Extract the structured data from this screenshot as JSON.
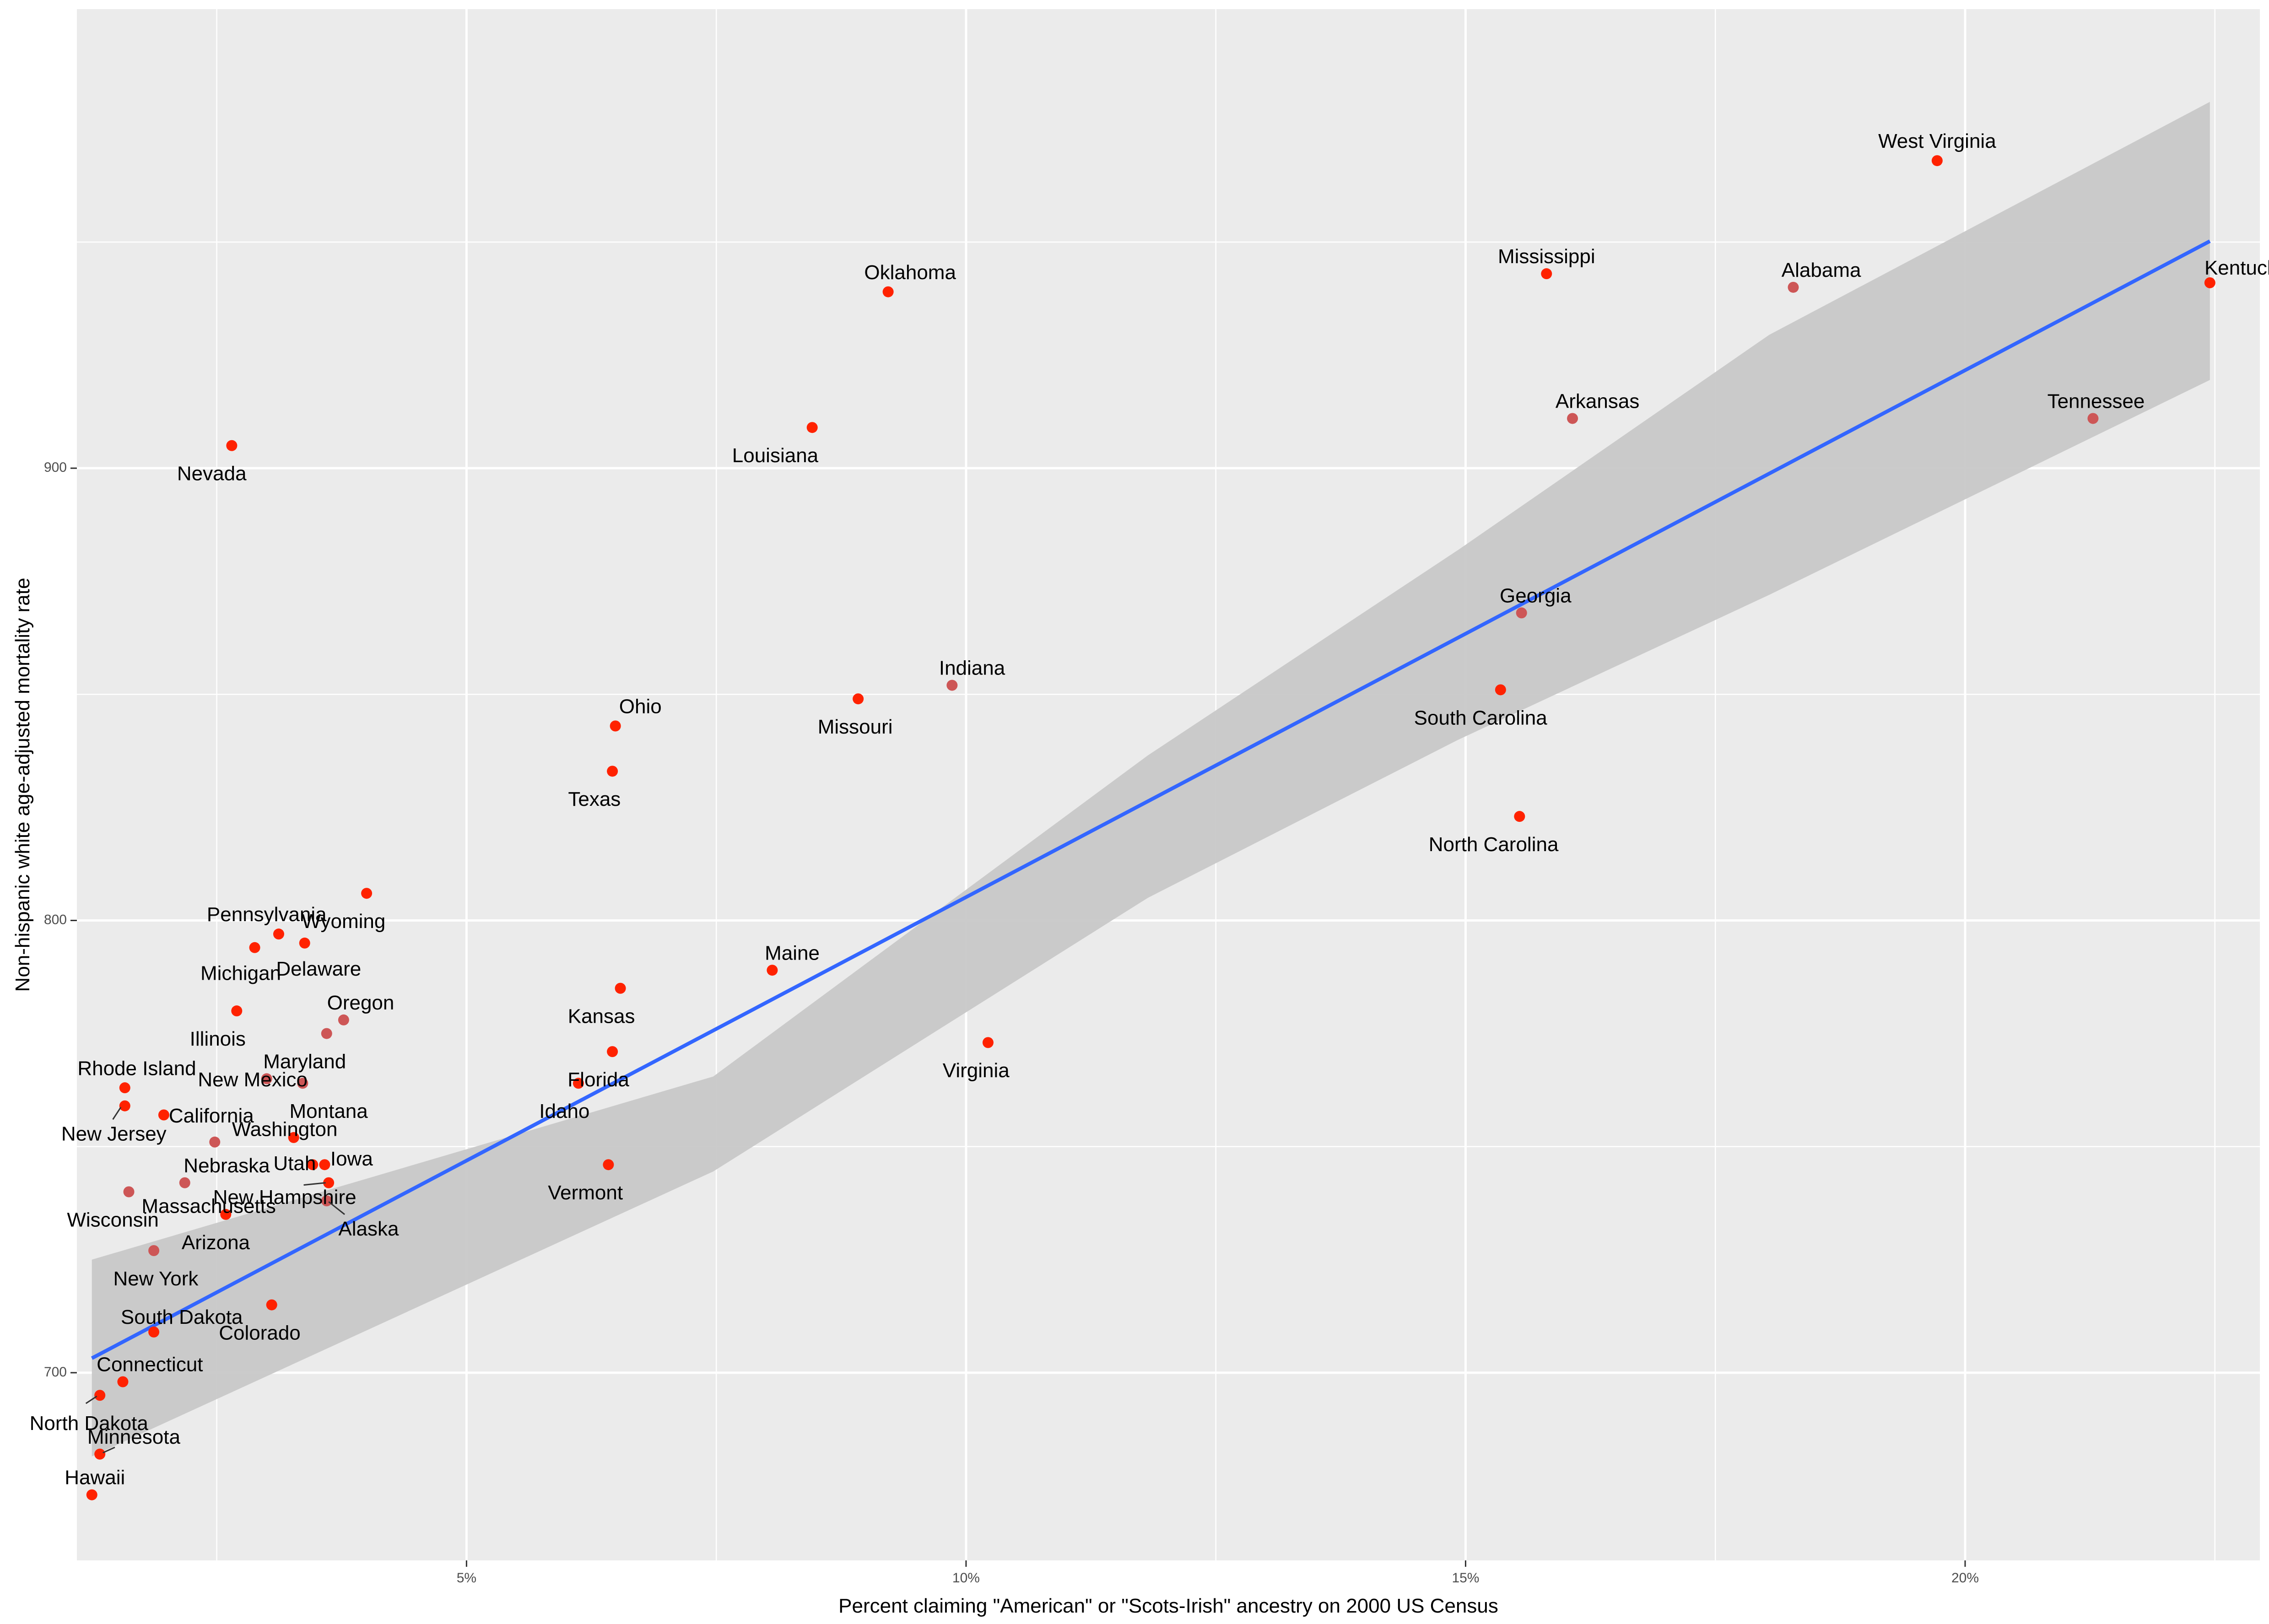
{
  "chart_data": {
    "type": "scatter",
    "title": "",
    "xlabel": "Percent claiming \"American\" or \"Scots-Irish\" ancestry on 2000 US Census",
    "ylabel": "Non-hispanic white age-adjusted mortality rate",
    "xlim": [
      0.011,
      0.2295
    ],
    "ylim": [
      658.5,
      1001.5
    ],
    "x_ticks": [
      0.05,
      0.1,
      0.15,
      0.2
    ],
    "x_tick_labels": [
      "5%",
      "10%",
      "15%",
      "20%"
    ],
    "y_ticks": [
      700,
      800,
      900
    ],
    "y_tick_labels": [
      "700",
      "800",
      "900"
    ],
    "grid": true,
    "legend": "none",
    "point_colors": {
      "bright": "#ff2200",
      "muted": "#cd5656"
    },
    "fit_line_color": "#3366ff",
    "band_color": "#c8c8c8",
    "fit": {
      "x0": 0.0125,
      "y0": 703.2,
      "x1": 0.2245,
      "y1": 950.2,
      "band_lower": [
        [
          0.0125,
          681.5
        ],
        [
          0.0747,
          744.5
        ],
        [
          0.1182,
          805.0
        ],
        [
          0.1493,
          840.0
        ],
        [
          0.1804,
          872.0
        ],
        [
          0.2245,
          919.5
        ]
      ],
      "band_upper": [
        [
          0.0125,
          725.0
        ],
        [
          0.0747,
          765.5
        ],
        [
          0.1182,
          836.5
        ],
        [
          0.1493,
          882.0
        ],
        [
          0.1804,
          929.5
        ],
        [
          0.2245,
          981.0
        ]
      ]
    },
    "points": [
      {
        "state": "West Virginia",
        "x": 0.1972,
        "y": 968.0,
        "color": "bright",
        "anchor": "middle",
        "lx": 0.1972,
        "ly": 972.0
      },
      {
        "state": "Mississippi",
        "x": 0.1581,
        "y": 943.0,
        "color": "bright",
        "anchor": "middle",
        "lx": 0.1581,
        "ly": 946.5
      },
      {
        "state": "Alabama",
        "x": 0.1828,
        "y": 940.0,
        "color": "muted",
        "anchor": "middle",
        "lx": 0.1856,
        "ly": 943.5
      },
      {
        "state": "Kentucky",
        "x": 0.2245,
        "y": 941.0,
        "color": "bright",
        "anchor": "middle",
        "lx": 0.2281,
        "ly": 944.0
      },
      {
        "state": "Oklahoma",
        "x": 0.0922,
        "y": 939.0,
        "color": "bright",
        "anchor": "middle",
        "lx": 0.0944,
        "ly": 943.0
      },
      {
        "state": "Louisiana",
        "x": 0.0846,
        "y": 909.0,
        "color": "bright",
        "anchor": "middle",
        "lx": 0.0809,
        "ly": 902.5
      },
      {
        "state": "Arkansas",
        "x": 0.1607,
        "y": 911.0,
        "color": "muted",
        "anchor": "middle",
        "lx": 0.1632,
        "ly": 914.5
      },
      {
        "state": "Tennessee",
        "x": 0.2128,
        "y": 911.0,
        "color": "muted",
        "anchor": "middle",
        "lx": 0.2131,
        "ly": 914.5
      },
      {
        "state": "Nevada",
        "x": 0.0265,
        "y": 905.0,
        "color": "bright",
        "anchor": "middle",
        "lx": 0.0245,
        "ly": 898.5
      },
      {
        "state": "Georgia",
        "x": 0.1556,
        "y": 868.0,
        "color": "muted",
        "anchor": "middle",
        "lx": 0.157,
        "ly": 871.5
      },
      {
        "state": "Indiana",
        "x": 0.0986,
        "y": 852.0,
        "color": "muted",
        "anchor": "middle",
        "lx": 0.1006,
        "ly": 855.5
      },
      {
        "state": "South Carolina",
        "x": 0.1535,
        "y": 851.0,
        "color": "bright",
        "anchor": "middle",
        "lx": 0.1515,
        "ly": 844.5
      },
      {
        "state": "Missouri",
        "x": 0.0892,
        "y": 849.0,
        "color": "bright",
        "anchor": "middle",
        "lx": 0.0889,
        "ly": 842.5
      },
      {
        "state": "Ohio",
        "x": 0.0649,
        "y": 843.0,
        "color": "bright",
        "anchor": "middle",
        "lx": 0.0674,
        "ly": 847.0
      },
      {
        "state": "Texas",
        "x": 0.0646,
        "y": 833.0,
        "color": "bright",
        "anchor": "middle",
        "lx": 0.0628,
        "ly": 826.5
      },
      {
        "state": "North Carolina",
        "x": 0.1554,
        "y": 823.0,
        "color": "bright",
        "anchor": "middle",
        "lx": 0.1528,
        "ly": 816.5
      },
      {
        "state": "Wyoming",
        "x": 0.04,
        "y": 806.0,
        "color": "bright",
        "anchor": "middle",
        "lx": 0.0377,
        "ly": 799.5
      },
      {
        "state": "Pennsylvania",
        "x": 0.0312,
        "y": 797.0,
        "color": "bright",
        "anchor": "middle",
        "lx": 0.03,
        "ly": 801.0
      },
      {
        "state": "Delaware",
        "x": 0.0338,
        "y": 795.0,
        "color": "bright",
        "anchor": "middle",
        "lx": 0.0352,
        "ly": 789.0
      },
      {
        "state": "Michigan",
        "x": 0.0288,
        "y": 794.0,
        "color": "bright",
        "anchor": "middle",
        "lx": 0.0274,
        "ly": 788.0
      },
      {
        "state": "Maine",
        "x": 0.0806,
        "y": 789.0,
        "color": "bright",
        "anchor": "middle",
        "lx": 0.0826,
        "ly": 792.5
      },
      {
        "state": "Kansas",
        "x": 0.0654,
        "y": 785.0,
        "color": "bright",
        "anchor": "middle",
        "lx": 0.0635,
        "ly": 778.5
      },
      {
        "state": "Illinois",
        "x": 0.027,
        "y": 780.0,
        "color": "bright",
        "anchor": "middle",
        "lx": 0.0251,
        "ly": 773.5
      },
      {
        "state": "Oregon",
        "x": 0.0377,
        "y": 778.0,
        "color": "muted",
        "anchor": "middle",
        "lx": 0.0394,
        "ly": 781.5
      },
      {
        "state": "Maryland",
        "x": 0.036,
        "y": 775.0,
        "color": "muted",
        "anchor": "middle",
        "lx": 0.0338,
        "ly": 768.5
      },
      {
        "state": "Florida",
        "x": 0.0646,
        "y": 771.0,
        "color": "bright",
        "anchor": "middle",
        "lx": 0.0632,
        "ly": 764.5
      },
      {
        "state": "Virginia",
        "x": 0.1022,
        "y": 773.0,
        "color": "bright",
        "anchor": "middle",
        "lx": 0.101,
        "ly": 766.5
      },
      {
        "state": "Rhode Island",
        "x": 0.0158,
        "y": 763.0,
        "color": "bright",
        "anchor": "middle",
        "lx": 0.017,
        "ly": 767.0
      },
      {
        "state": "New Mexico",
        "x": 0.03,
        "y": 765.0,
        "color": "muted",
        "anchor": "middle",
        "lx": 0.0286,
        "ly": 764.5
      },
      {
        "state": "Montana",
        "x": 0.0336,
        "y": 764.0,
        "color": "muted",
        "anchor": "middle",
        "lx": 0.0362,
        "ly": 757.5
      },
      {
        "state": "Idaho",
        "x": 0.0612,
        "y": 764.0,
        "color": "bright",
        "anchor": "middle",
        "lx": 0.0598,
        "ly": 757.5
      },
      {
        "state": "New Jersey",
        "x": 0.0158,
        "y": 759.0,
        "color": "bright",
        "anchor": "middle",
        "lx": 0.0147,
        "ly": 752.5
      },
      {
        "state": "California",
        "x": 0.0197,
        "y": 757.0,
        "color": "bright",
        "anchor": "start",
        "lx": 0.0202,
        "ly": 756.5
      },
      {
        "state": "Washington",
        "x": 0.0327,
        "y": 752.0,
        "color": "bright",
        "anchor": "middle",
        "lx": 0.0318,
        "ly": 753.5
      },
      {
        "state": "Nebraska",
        "x": 0.0248,
        "y": 751.0,
        "color": "muted",
        "anchor": "middle",
        "lx": 0.026,
        "ly": 745.5
      },
      {
        "state": "Utah",
        "x": 0.0346,
        "y": 746.0,
        "color": "bright",
        "anchor": "middle",
        "lx": 0.0328,
        "ly": 746.0
      },
      {
        "state": "Iowa",
        "x": 0.0358,
        "y": 746.0,
        "color": "bright",
        "anchor": "middle",
        "lx": 0.0385,
        "ly": 747.0
      },
      {
        "state": "Vermont",
        "x": 0.0642,
        "y": 746.0,
        "color": "bright",
        "anchor": "middle",
        "lx": 0.0619,
        "ly": 739.5
      },
      {
        "state": "Massachusetts",
        "x": 0.0218,
        "y": 742.0,
        "color": "muted",
        "anchor": "middle",
        "lx": 0.0242,
        "ly": 736.5
      },
      {
        "state": "New Hampshire",
        "x": 0.0362,
        "y": 742.0,
        "color": "bright",
        "anchor": "middle",
        "lx": 0.0318,
        "ly": 738.5
      },
      {
        "state": "Wisconsin",
        "x": 0.0162,
        "y": 740.0,
        "color": "muted",
        "anchor": "middle",
        "lx": 0.0146,
        "ly": 733.5
      },
      {
        "state": "Alaska",
        "x": 0.036,
        "y": 738.0,
        "color": "muted",
        "anchor": "middle",
        "lx": 0.0402,
        "ly": 731.5
      },
      {
        "state": "Arizona",
        "x": 0.0259,
        "y": 735.0,
        "color": "bright",
        "anchor": "middle",
        "lx": 0.0249,
        "ly": 728.5
      },
      {
        "state": "New York",
        "x": 0.0187,
        "y": 727.0,
        "color": "muted",
        "anchor": "middle",
        "lx": 0.0189,
        "ly": 720.5
      },
      {
        "state": "Colorado",
        "x": 0.0305,
        "y": 715.0,
        "color": "bright",
        "anchor": "middle",
        "lx": 0.0293,
        "ly": 708.5
      },
      {
        "state": "South Dakota",
        "x": 0.0187,
        "y": 709.0,
        "color": "bright",
        "anchor": "middle",
        "lx": 0.0215,
        "ly": 712.0
      },
      {
        "state": "Connecticut",
        "x": 0.0156,
        "y": 698.0,
        "color": "bright",
        "anchor": "middle",
        "lx": 0.0183,
        "ly": 701.5
      },
      {
        "state": "North Dakota",
        "x": 0.0133,
        "y": 695.0,
        "color": "bright",
        "anchor": "middle",
        "lx": 0.0122,
        "ly": 688.5
      },
      {
        "state": "Minnesota",
        "x": 0.0133,
        "y": 682.0,
        "color": "bright",
        "anchor": "middle",
        "lx": 0.0167,
        "ly": 685.5
      },
      {
        "state": "Hawaii",
        "x": 0.0125,
        "y": 673.0,
        "color": "bright",
        "anchor": "middle",
        "lx": 0.0128,
        "ly": 676.5
      }
    ]
  }
}
